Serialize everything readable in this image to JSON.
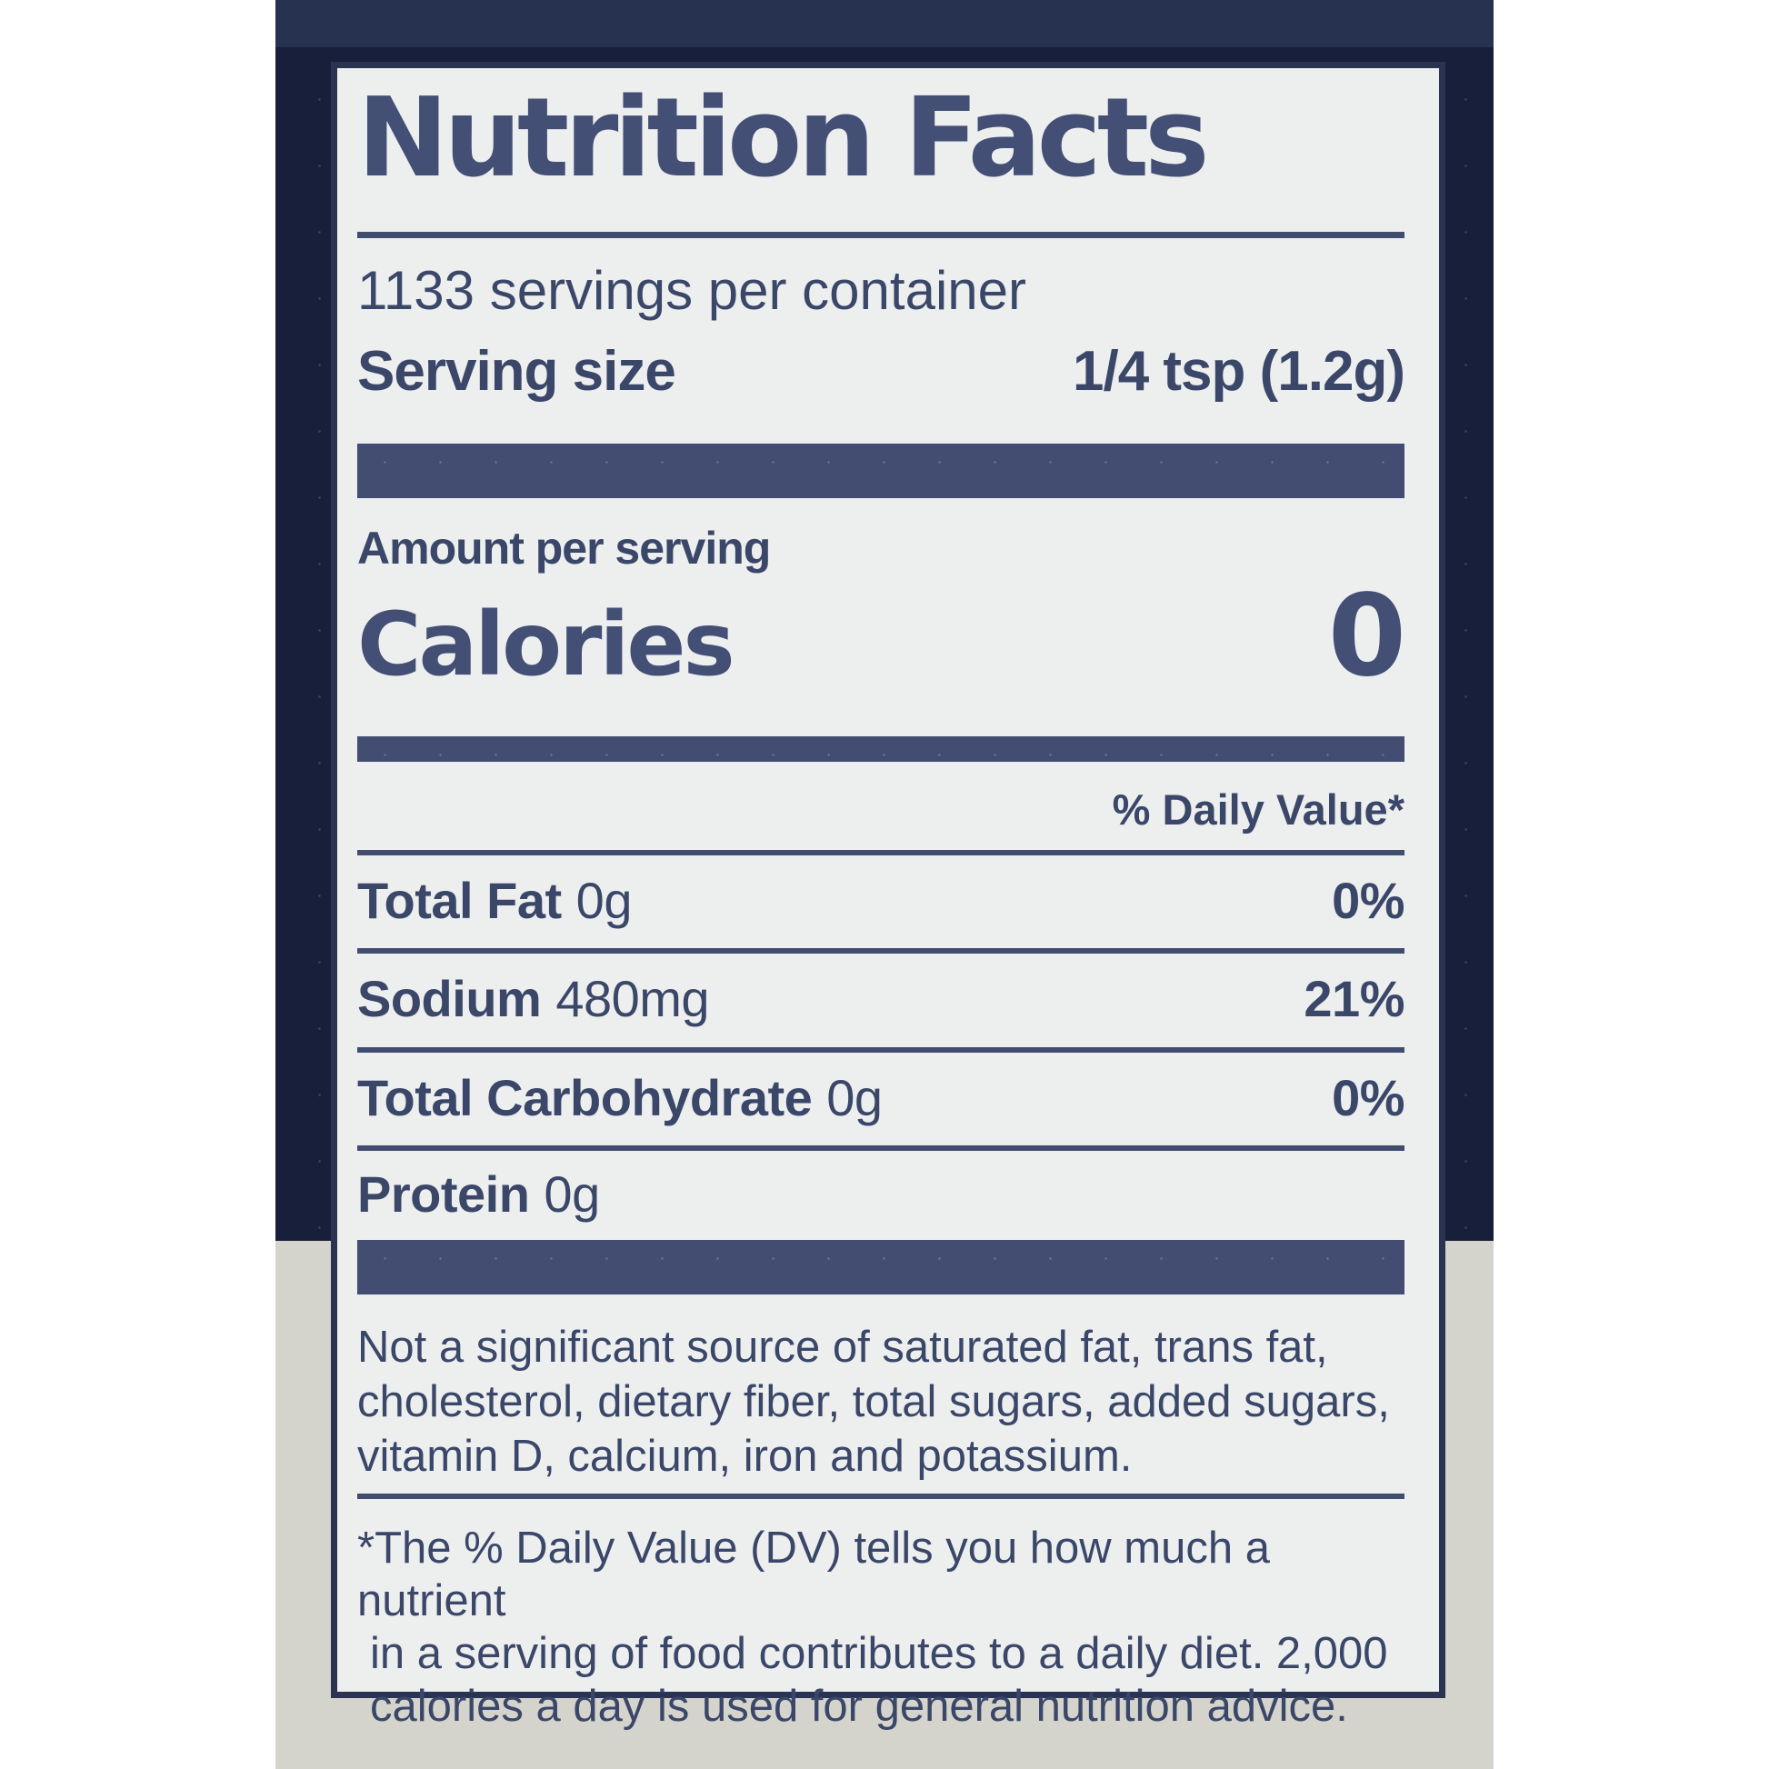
{
  "colors": {
    "page_bg": "#ffffff",
    "package_navy": "#181f3a",
    "package_navy_top": "#273150",
    "package_gray": "#d4d4cc",
    "label_bg": "#edefef",
    "label_border": "#2b3352",
    "text_navy": "#3b4769",
    "title_navy": "#434f75",
    "rule_navy": "#414d6e",
    "bar_navy": "#434c71"
  },
  "label": {
    "title": "Nutrition Facts",
    "servings_per_container": "1133 servings per container",
    "serving_size": {
      "label": "Serving size",
      "value": "1/4 tsp (1.2g)"
    },
    "amount_per_serving": "Amount per serving",
    "calories": {
      "label": "Calories",
      "value": "0"
    },
    "daily_value_header": "% Daily Value*",
    "nutrients": [
      {
        "name": "Total Fat",
        "amount": "0g",
        "dv": "0%"
      },
      {
        "name": "Sodium",
        "amount": "480mg",
        "dv": "21%"
      },
      {
        "name": "Total Carbohydrate",
        "amount": "0g",
        "dv": "0%"
      },
      {
        "name": "Protein",
        "amount": "0g",
        "dv": ""
      }
    ],
    "not_significant_lines": [
      "Not a significant source of saturated fat, trans fat,",
      "cholesterol, dietary fiber, total sugars, added sugars,",
      "vitamin D, calcium, iron and potassium."
    ],
    "footnote_lines": [
      "*The % Daily Value (DV) tells you how much a nutrient",
      "in a serving of food contributes to a daily diet. 2,000",
      "calories a day is used for general nutrition advice."
    ]
  }
}
